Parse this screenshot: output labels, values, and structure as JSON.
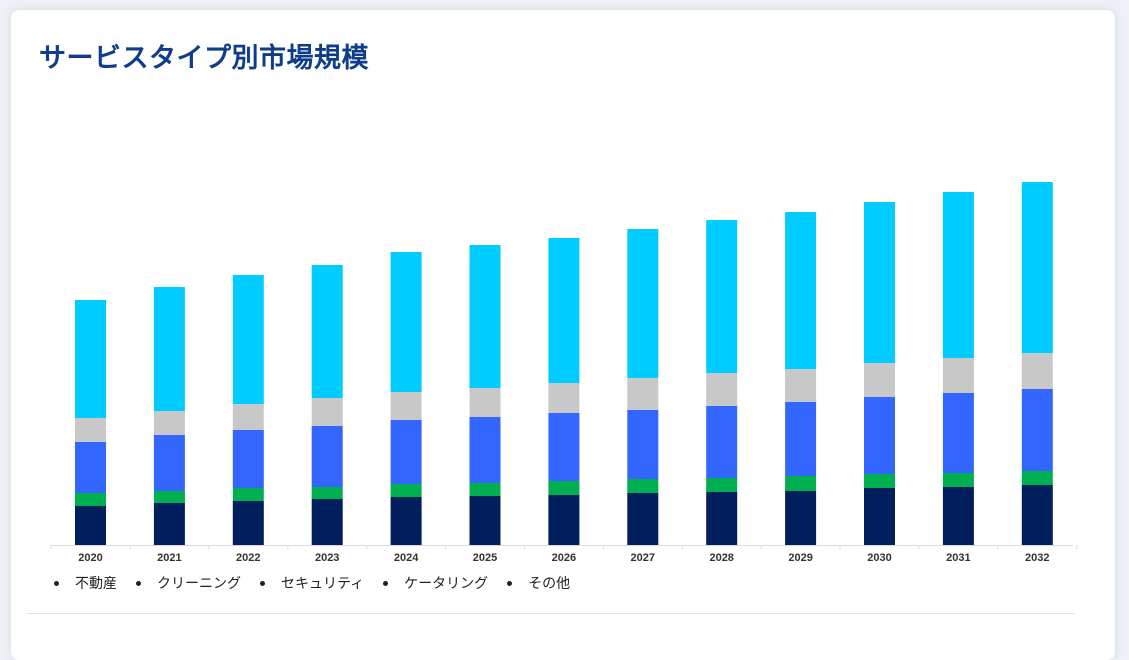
{
  "title": "サービスタイプ別市場規模",
  "colors": {
    "title": "#0f3d8c",
    "page_background": "#eef2f7"
  },
  "chart_data": {
    "type": "bar",
    "stacked": true,
    "title": "サービスタイプ別市場規模",
    "xlabel": "",
    "ylabel": "",
    "y_axis_visible": false,
    "value_units": "relative (no y-axis shown; estimated from bar proportions)",
    "ylim": [
      0,
      380
    ],
    "grid": false,
    "legend_position": "bottom-left",
    "categories": [
      "2020",
      "2021",
      "2022",
      "2023",
      "2024",
      "2025",
      "2026",
      "2027",
      "2028",
      "2029",
      "2030",
      "2031",
      "2032"
    ],
    "series": [
      {
        "name": "不動産",
        "color": "#001f5c",
        "values": [
          39,
          42,
          44,
          46,
          48,
          49,
          50,
          52,
          53,
          54,
          57,
          58,
          60
        ]
      },
      {
        "name": "クリーニング",
        "color": "#00b050",
        "values": [
          13,
          12,
          13,
          12,
          13,
          13,
          14,
          14,
          14,
          15,
          14,
          14,
          14
        ]
      },
      {
        "name": "セキュリティ",
        "color": "#3366ff",
        "values": [
          51,
          56,
          58,
          61,
          64,
          66,
          68,
          69,
          72,
          74,
          77,
          80,
          82
        ]
      },
      {
        "name": "ケータリング",
        "color": "#c8c8c8",
        "values": [
          24,
          24,
          26,
          28,
          28,
          29,
          30,
          32,
          33,
          33,
          34,
          35,
          36
        ]
      },
      {
        "name": "その他",
        "color": "#00ccff",
        "values": [
          118,
          124,
          129,
          133,
          140,
          143,
          145,
          149,
          153,
          157,
          161,
          166,
          171
        ]
      }
    ]
  },
  "legend": [
    {
      "label": "不動産"
    },
    {
      "label": "クリーニング"
    },
    {
      "label": "セキュリティ"
    },
    {
      "label": "ケータリング"
    },
    {
      "label": "その他"
    }
  ]
}
